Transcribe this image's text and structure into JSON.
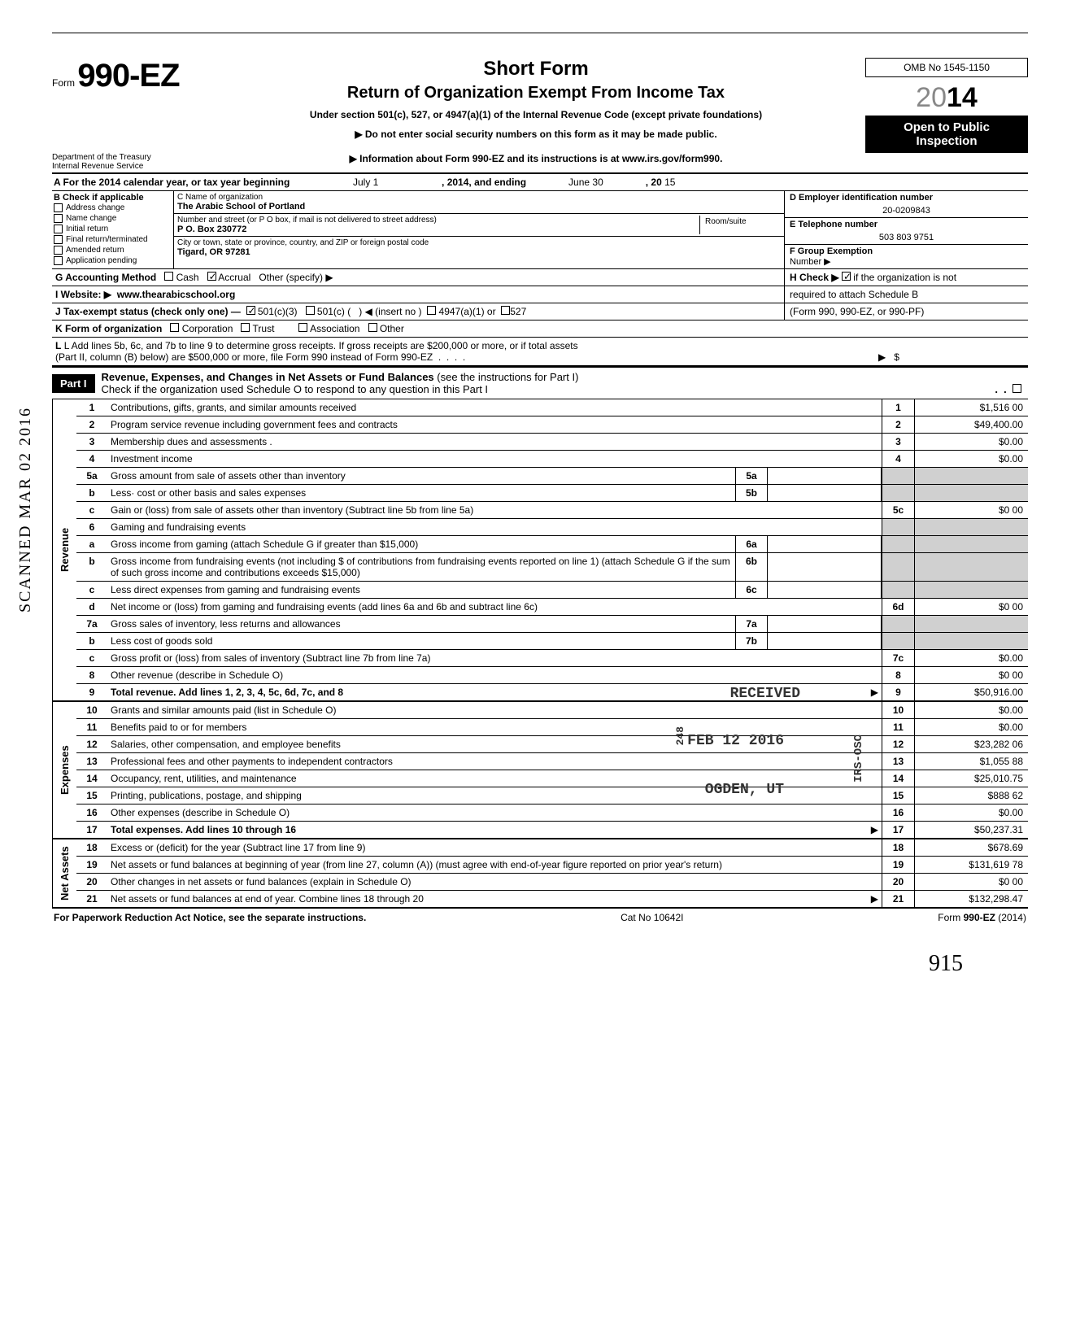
{
  "header": {
    "form_prefix": "Form",
    "form_no": "990-EZ",
    "short_form": "Short Form",
    "title": "Return of Organization Exempt From Income Tax",
    "subtitle1": "Under section 501(c), 527, or 4947(a)(1) of the Internal Revenue Code (except private foundations)",
    "subtitle2": "▶ Do not enter social security numbers on this form as it may be made public.",
    "subtitle3": "▶ Information about Form 990-EZ and its instructions is at www.irs.gov/form990.",
    "omb": "OMB No 1545-1150",
    "year_outline": "20",
    "year_bold": "14",
    "open1": "Open to Public",
    "open2": "Inspection",
    "dept1": "Department of the Treasury",
    "dept2": "Internal Revenue Service"
  },
  "lineA": {
    "prefix": "A For the 2014 calendar year, or tax year beginning",
    "begin": "July 1",
    "mid": ", 2014, and ending",
    "end": "June 30",
    "suffix": ", 20",
    "yy": "15"
  },
  "colB": {
    "hdr": "B Check if applicable",
    "items": [
      "Address change",
      "Name change",
      "Initial return",
      "Final return/terminated",
      "Amended return",
      "Application pending"
    ]
  },
  "colC": {
    "name_lbl": "C Name of organization",
    "name_val": "The Arabic School of Portland",
    "addr_lbl": "Number and street (or P O  box, if mail is not delivered to street address)",
    "addr_val": "P O. Box 230772",
    "city_lbl": "City or town, state or province, country, and ZIP or foreign postal code",
    "city_val": "Tigard, OR 97281",
    "room_lbl": "Room/suite"
  },
  "colD": {
    "ein_lbl": "D Employer identification number",
    "ein_val": "20-0209843",
    "tel_lbl": "E Telephone number",
    "tel_val": "503 803 9751",
    "grp_lbl": "F Group Exemption",
    "grp_lbl2": "Number ▶"
  },
  "gRow": {
    "g": "G Accounting Method",
    "cash": "Cash",
    "accrual": "Accrual",
    "other": "Other (specify) ▶",
    "h": "H Check ▶",
    "h2": "if the organization is not",
    "h3": "required to attach Schedule B",
    "h4": "(Form 990, 990-EZ, or 990-PF)"
  },
  "iRow": {
    "i": "I  Website: ▶",
    "val": "www.thearabicschool.org"
  },
  "jRow": {
    "j": "J Tax-exempt status (check only one) —",
    "a": "501(c)(3)",
    "b": "501(c) (",
    "c": ") ◀ (insert no )",
    "d": "4947(a)(1) or",
    "e": "527"
  },
  "kRow": {
    "k": "K Form of organization",
    "a": "Corporation",
    "b": "Trust",
    "c": "Association",
    "d": "Other"
  },
  "lRow": {
    "l1": "L Add lines 5b, 6c, and 7b to line 9 to determine gross receipts. If gross receipts are $200,000 or more, or if total assets",
    "l2": "(Part II, column (B) below) are $500,000 or more, file Form 990 instead of Form 990-EZ",
    "arrow": "▶",
    "dollar": "$"
  },
  "part1": {
    "label": "Part I",
    "title": "Revenue, Expenses, and Changes in Net Assets or Fund Balances",
    "title2": "(see the instructions for Part I)",
    "check": "Check if the organization used Schedule O to respond to any question in this Part I"
  },
  "sections": {
    "revenue": "Revenue",
    "expenses": "Expenses",
    "netassets": "Net Assets"
  },
  "rows": [
    {
      "n": "1",
      "desc": "Contributions, gifts, grants, and similar amounts received",
      "ref": "1",
      "amt": "$1,516 00"
    },
    {
      "n": "2",
      "desc": "Program service revenue including government fees and contracts",
      "ref": "2",
      "amt": "$49,400.00"
    },
    {
      "n": "3",
      "desc": "Membership dues and assessments .",
      "ref": "3",
      "amt": "$0.00"
    },
    {
      "n": "4",
      "desc": "Investment income",
      "ref": "4",
      "amt": "$0.00"
    },
    {
      "n": "5a",
      "desc": "Gross amount from sale of assets other than inventory",
      "mid": "5a"
    },
    {
      "n": "b",
      "desc": "Less· cost or other basis and sales expenses",
      "mid": "5b"
    },
    {
      "n": "c",
      "desc": "Gain or (loss) from sale of assets other than inventory (Subtract line 5b from line 5a)",
      "ref": "5c",
      "amt": "$0 00"
    },
    {
      "n": "6",
      "desc": "Gaming and fundraising events"
    },
    {
      "n": "a",
      "desc": "Gross income from gaming (attach Schedule G if greater than $15,000)",
      "mid": "6a"
    },
    {
      "n": "b",
      "desc": "Gross income from fundraising events (not including  $                    of contributions from fundraising events reported on line 1) (attach Schedule G if the sum of such gross income and contributions exceeds $15,000)",
      "mid": "6b"
    },
    {
      "n": "c",
      "desc": "Less direct expenses from gaming and fundraising events",
      "mid": "6c"
    },
    {
      "n": "d",
      "desc": "Net income or (loss) from gaming and fundraising events (add lines 6a and 6b and subtract line 6c)",
      "ref": "6d",
      "amt": "$0 00"
    },
    {
      "n": "7a",
      "desc": "Gross sales of inventory, less returns and allowances",
      "mid": "7a"
    },
    {
      "n": "b",
      "desc": "Less cost of goods sold",
      "mid": "7b"
    },
    {
      "n": "c",
      "desc": "Gross profit or (loss) from sales of inventory (Subtract line 7b from line 7a)",
      "ref": "7c",
      "amt": "$0.00"
    },
    {
      "n": "8",
      "desc": "Other revenue (describe in Schedule O)",
      "ref": "8",
      "amt": "$0 00"
    },
    {
      "n": "9",
      "desc": "Total revenue. Add lines 1, 2, 3, 4, 5c, 6d, 7c, and 8",
      "ref": "9",
      "amt": "$50,916.00",
      "bold": true,
      "arrow": true
    }
  ],
  "exp_rows": [
    {
      "n": "10",
      "desc": "Grants and similar amounts paid (list in Schedule O)",
      "ref": "10",
      "amt": "$0.00"
    },
    {
      "n": "11",
      "desc": "Benefits paid to or for members",
      "ref": "11",
      "amt": "$0.00"
    },
    {
      "n": "12",
      "desc": "Salaries, other compensation, and employee benefits",
      "ref": "12",
      "amt": "$23,282 06"
    },
    {
      "n": "13",
      "desc": "Professional fees and other payments to independent contractors",
      "ref": "13",
      "amt": "$1,055 88"
    },
    {
      "n": "14",
      "desc": "Occupancy, rent, utilities, and maintenance",
      "ref": "14",
      "amt": "$25,010.75"
    },
    {
      "n": "15",
      "desc": "Printing, publications, postage, and shipping",
      "ref": "15",
      "amt": "$888 62"
    },
    {
      "n": "16",
      "desc": "Other expenses (describe in Schedule O)",
      "ref": "16",
      "amt": "$0.00"
    },
    {
      "n": "17",
      "desc": "Total expenses. Add lines 10 through 16",
      "ref": "17",
      "amt": "$50,237.31",
      "bold": true,
      "arrow": true
    }
  ],
  "na_rows": [
    {
      "n": "18",
      "desc": "Excess or (deficit) for the year (Subtract line 17 from line 9)",
      "ref": "18",
      "amt": "$678.69"
    },
    {
      "n": "19",
      "desc": "Net assets or fund balances at beginning of year (from line 27, column (A)) (must agree with end-of-year figure reported on prior year's return)",
      "ref": "19",
      "amt": "$131,619 78"
    },
    {
      "n": "20",
      "desc": "Other changes in net assets or fund balances (explain in Schedule O)",
      "ref": "20",
      "amt": "$0 00"
    },
    {
      "n": "21",
      "desc": "Net assets or fund balances at end of year. Combine lines 18 through 20",
      "ref": "21",
      "amt": "$132,298.47",
      "arrow": true
    }
  ],
  "footer": {
    "left": "For Paperwork Reduction Act Notice, see the separate instructions.",
    "mid": "Cat No 10642I",
    "right": "Form 990-EZ (2014)"
  },
  "stamps": {
    "scanned": "SCANNED MAR 02 2016",
    "received": "RECEIVED",
    "date": "FEB 12 2016",
    "ogden": "OGDEN, UT",
    "irs": "IRS-OSC",
    "num": "248"
  },
  "sig": "915"
}
